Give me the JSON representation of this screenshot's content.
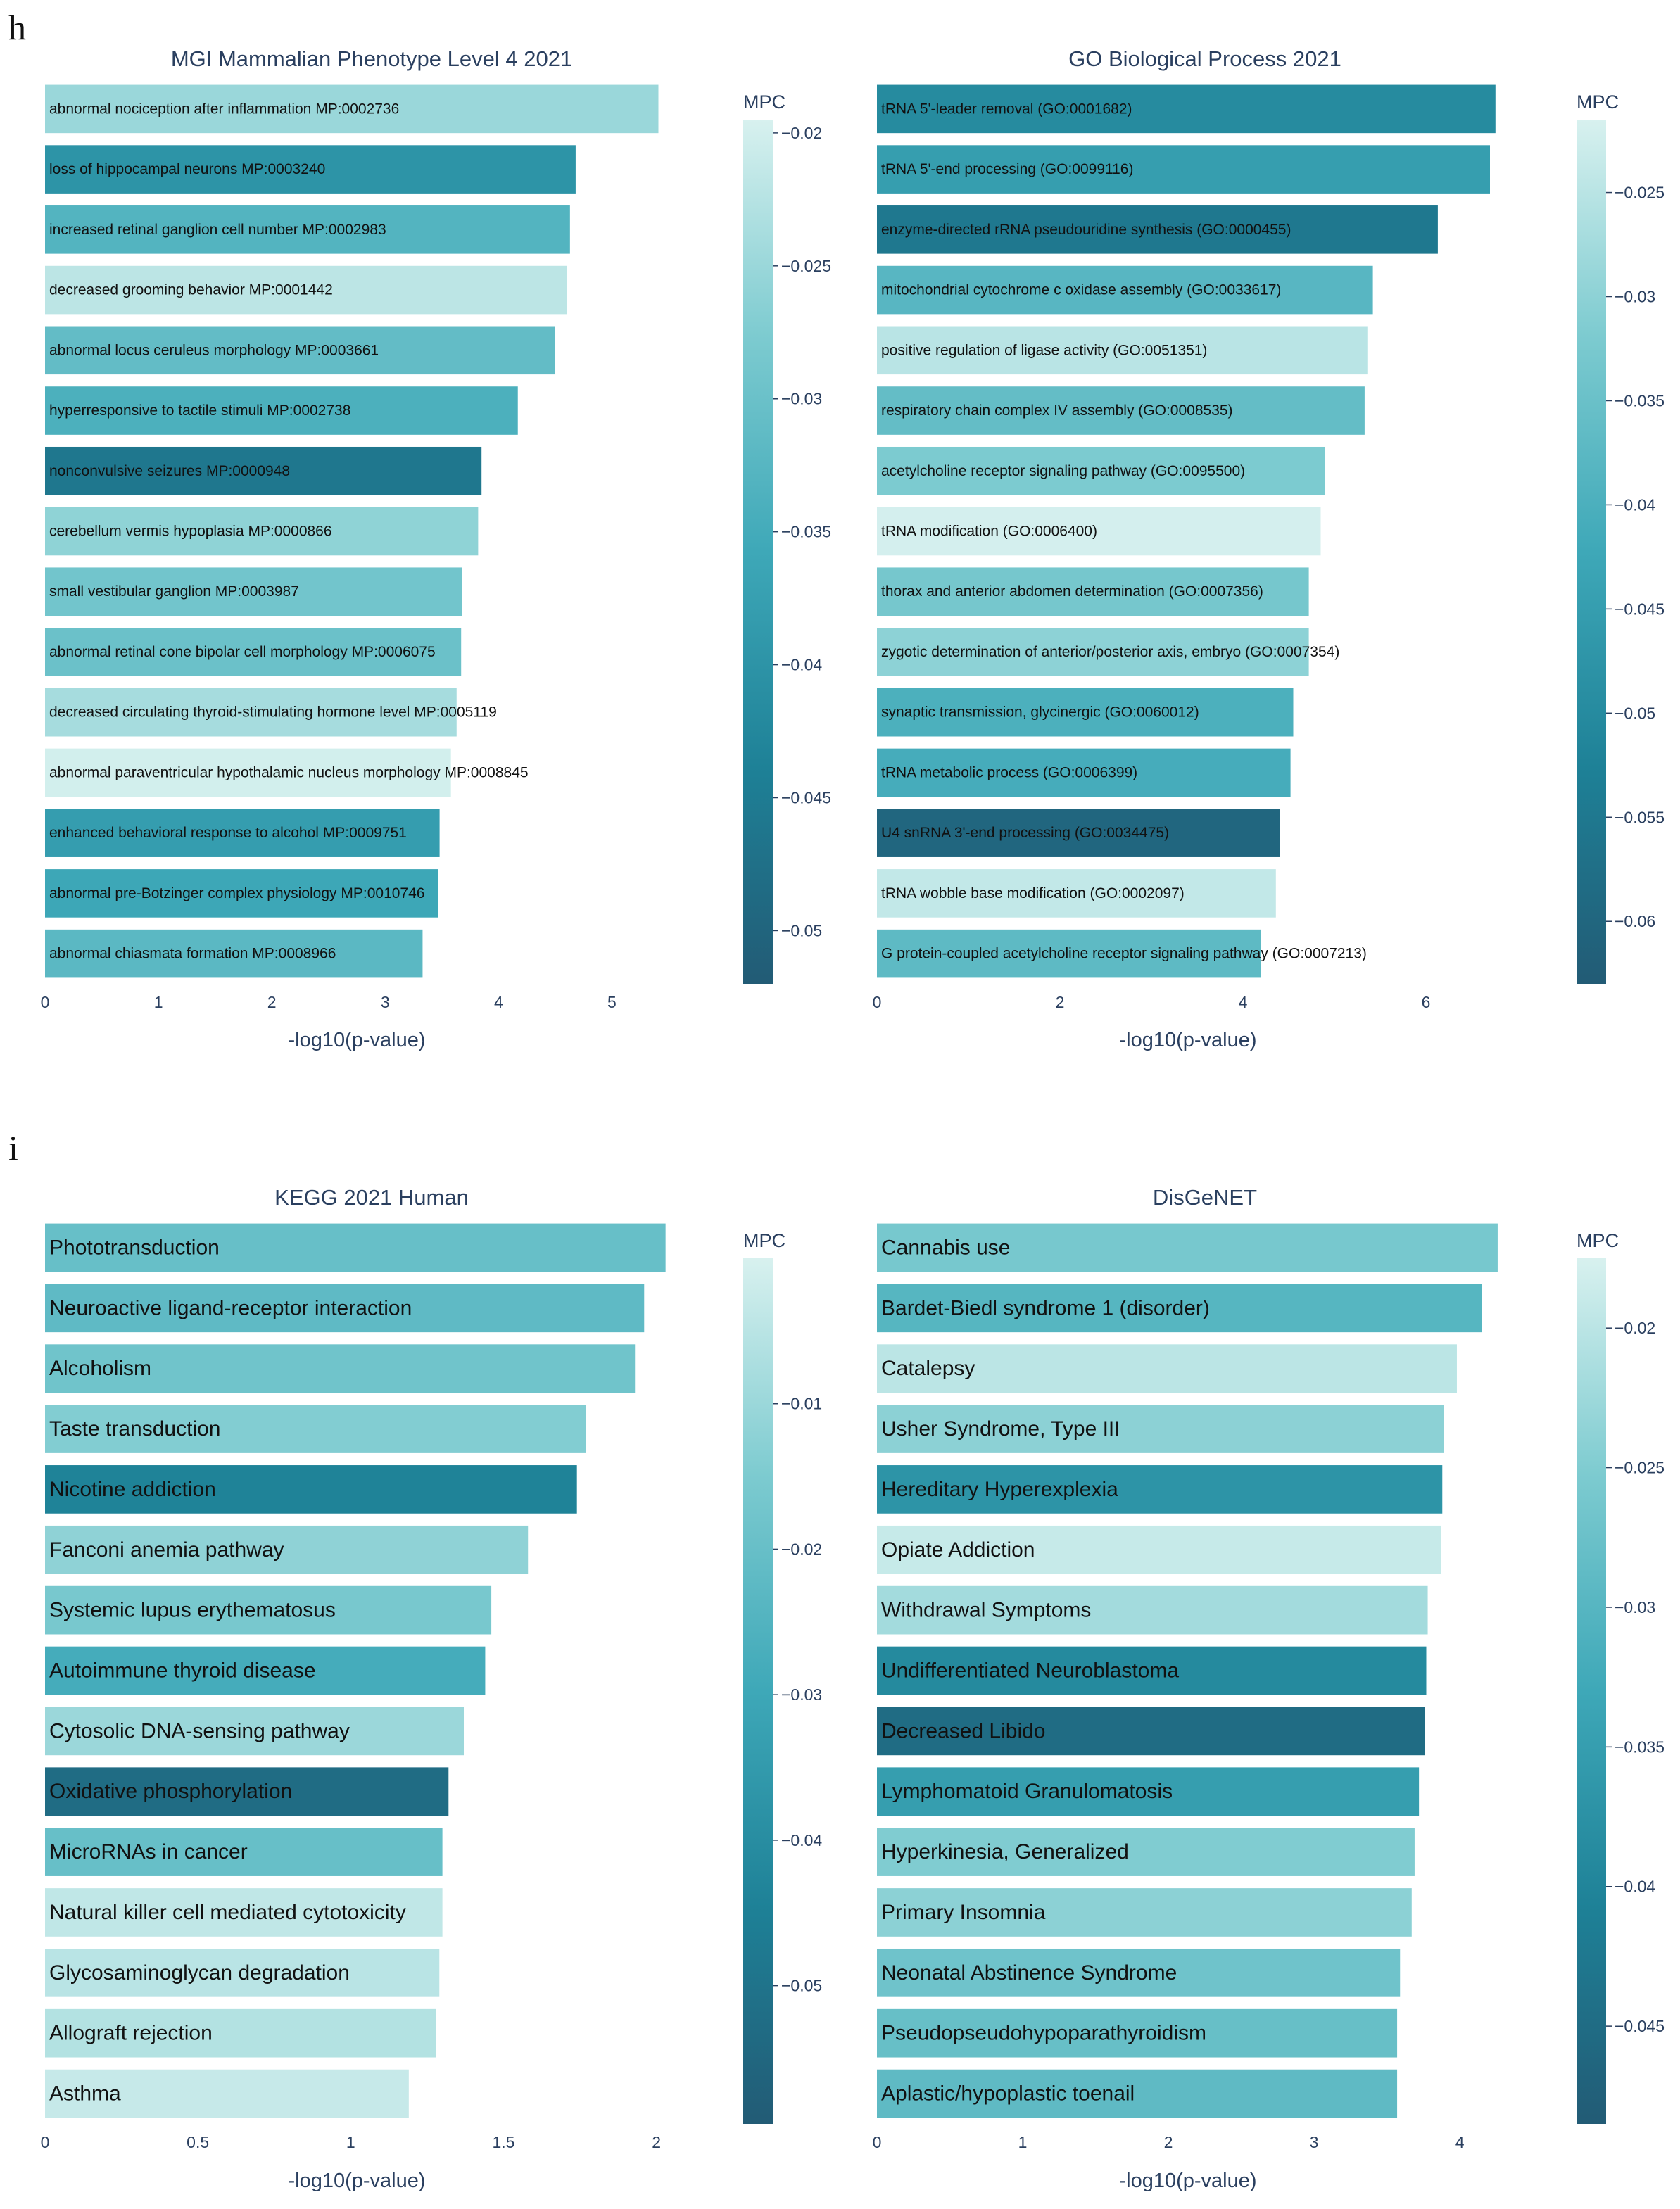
{
  "panel_letters": {
    "top": "h",
    "bottom": "i"
  },
  "colorscale": [
    "#d8f1ef",
    "#7dcbd0",
    "#3ea8b8",
    "#1e8197",
    "#225b75"
  ],
  "chart_data": [
    {
      "type": "bar",
      "orientation": "horizontal",
      "title": "MGI Mammalian Phenotype Level 4 2021",
      "xlabel": "-log10(p-value)",
      "xlim": [
        0,
        5.5
      ],
      "xticks": [
        0,
        1,
        2,
        3,
        4,
        5
      ],
      "colorbar_title": "MPC",
      "cmin": -0.052,
      "cmax": -0.0195,
      "colorbar_ticks": [
        -0.02,
        -0.025,
        -0.03,
        -0.035,
        -0.04,
        -0.045,
        -0.05
      ],
      "categories": [
        "abnormal nociception after inflammation MP:0002736",
        "loss of hippocampal neurons MP:0003240",
        "increased retinal ganglion cell number MP:0002983",
        "decreased grooming behavior MP:0001442",
        "abnormal locus ceruleus morphology MP:0003661",
        "hyperresponsive to tactile stimuli MP:0002738",
        "nonconvulsive seizures MP:0000948",
        "cerebellum vermis hypoplasia MP:0000866",
        "small vestibular ganglion MP:0003987",
        "abnormal retinal cone bipolar cell morphology MP:0006075",
        "decreased circulating thyroid-stimulating hormone level MP:0005119",
        "abnormal paraventricular hypothalamic nucleus morphology MP:0008845",
        "enhanced behavioral response to alcohol MP:0009751",
        "abnormal pre-Botzinger complex physiology MP:0010746",
        "abnormal chiasmata formation MP:0008966"
      ],
      "values": [
        5.41,
        4.68,
        4.63,
        4.6,
        4.5,
        4.17,
        3.85,
        3.82,
        3.68,
        3.67,
        3.63,
        3.58,
        3.48,
        3.47,
        3.33
      ],
      "mpc": [
        -0.025,
        -0.04,
        -0.033,
        -0.022,
        -0.031,
        -0.034,
        -0.046,
        -0.026,
        -0.029,
        -0.03,
        -0.024,
        -0.02,
        -0.038,
        -0.036,
        -0.032
      ]
    },
    {
      "type": "bar",
      "orientation": "horizontal",
      "title": "GO Biological Process 2021",
      "xlabel": "-log10(p-value)",
      "xlim": [
        0,
        6.8
      ],
      "xticks": [
        0,
        2,
        4,
        6
      ],
      "colorbar_title": "MPC",
      "cmin": -0.063,
      "cmax": -0.0215,
      "colorbar_ticks": [
        -0.025,
        -0.03,
        -0.035,
        -0.04,
        -0.045,
        -0.05,
        -0.055,
        -0.06
      ],
      "categories": [
        "tRNA 5'-leader removal (GO:0001682)",
        "tRNA 5'-end processing (GO:0099116)",
        "enzyme-directed rRNA pseudouridine synthesis (GO:0000455)",
        "mitochondrial cytochrome c oxidase assembly (GO:0033617)",
        "positive regulation of ligase activity (GO:0051351)",
        "respiratory chain complex IV assembly (GO:0008535)",
        "acetylcholine receptor signaling pathway (GO:0095500)",
        "tRNA modification (GO:0006400)",
        "thorax and anterior abdomen determination (GO:0007356)",
        "zygotic determination of anterior/posterior axis, embryo (GO:0007354)",
        "synaptic transmission, glycinergic (GO:0060012)",
        "tRNA metabolic process (GO:0006399)",
        "U4 snRNA 3'-end processing (GO:0034475)",
        "tRNA wobble base modification (GO:0002097)",
        "G protein-coupled acetylcholine receptor signaling pathway (GO:0007213)"
      ],
      "values": [
        6.76,
        6.7,
        6.13,
        5.42,
        5.36,
        5.33,
        4.9,
        4.85,
        4.72,
        4.72,
        4.55,
        4.52,
        4.4,
        4.36,
        4.2
      ],
      "mpc": [
        -0.05,
        -0.045,
        -0.055,
        -0.038,
        -0.025,
        -0.036,
        -0.032,
        -0.022,
        -0.033,
        -0.03,
        -0.04,
        -0.041,
        -0.06,
        -0.024,
        -0.037
      ]
    },
    {
      "type": "bar",
      "orientation": "horizontal",
      "title": "KEGG 2021 Human",
      "xlabel": "-log10(p-value)",
      "xlim": [
        0,
        2.04
      ],
      "xticks": [
        0,
        0.5,
        1,
        1.5,
        2
      ],
      "colorbar_title": "MPC",
      "cmin": -0.0595,
      "cmax": 0.0,
      "colorbar_ticks": [
        -0.01,
        -0.02,
        -0.03,
        -0.04,
        -0.05
      ],
      "categories": [
        "Phototransduction",
        "Neuroactive ligand-receptor interaction",
        "Alcoholism",
        "Taste transduction",
        "Nicotine addiction",
        "Fanconi anemia pathway",
        "Systemic lupus erythematosus",
        "Autoimmune thyroid disease",
        "Cytosolic DNA-sensing pathway",
        "Oxidative phosphorylation",
        "MicroRNAs in cancer",
        "Natural killer cell mediated cytotoxicity",
        "Glycosaminoglycan degradation",
        "Allograft rejection",
        "Asthma"
      ],
      "values": [
        2.03,
        1.96,
        1.93,
        1.77,
        1.74,
        1.58,
        1.46,
        1.44,
        1.37,
        1.32,
        1.3,
        1.3,
        1.29,
        1.28,
        1.19
      ],
      "mpc": [
        -0.02,
        -0.022,
        -0.018,
        -0.014,
        -0.044,
        -0.012,
        -0.016,
        -0.028,
        -0.01,
        -0.053,
        -0.02,
        -0.004,
        -0.005,
        -0.006,
        -0.003
      ]
    },
    {
      "type": "bar",
      "orientation": "horizontal",
      "title": "DisGeNET",
      "xlabel": "-log10(p-value)",
      "xlim": [
        0,
        4.27
      ],
      "xticks": [
        0,
        1,
        2,
        3,
        4
      ],
      "colorbar_title": "MPC",
      "cmin": -0.0485,
      "cmax": -0.0175,
      "colorbar_ticks": [
        -0.02,
        -0.025,
        -0.03,
        -0.035,
        -0.04,
        -0.045
      ],
      "categories": [
        "Cannabis use",
        "Bardet-Biedl syndrome 1 (disorder)",
        "Catalepsy",
        "Usher Syndrome, Type III",
        "Hereditary Hyperexplexia",
        "Opiate Addiction",
        "Withdrawal Symptoms",
        "Undifferentiated Neuroblastoma",
        "Decreased Libido",
        "Lymphomatoid Granulomatosis",
        "Hyperkinesia, Generalized",
        "Primary Insomnia",
        "Neonatal Abstinence Syndrome",
        "Pseudopseudohypoparathyroidism",
        "Aplastic/hypoplastic toenail"
      ],
      "values": [
        4.26,
        4.15,
        3.98,
        3.89,
        3.88,
        3.87,
        3.78,
        3.77,
        3.76,
        3.72,
        3.69,
        3.67,
        3.59,
        3.57,
        3.57
      ],
      "mpc": [
        -0.026,
        -0.03,
        -0.02,
        -0.024,
        -0.037,
        -0.019,
        -0.022,
        -0.039,
        -0.045,
        -0.035,
        -0.025,
        -0.024,
        -0.027,
        -0.028,
        -0.029
      ]
    }
  ]
}
